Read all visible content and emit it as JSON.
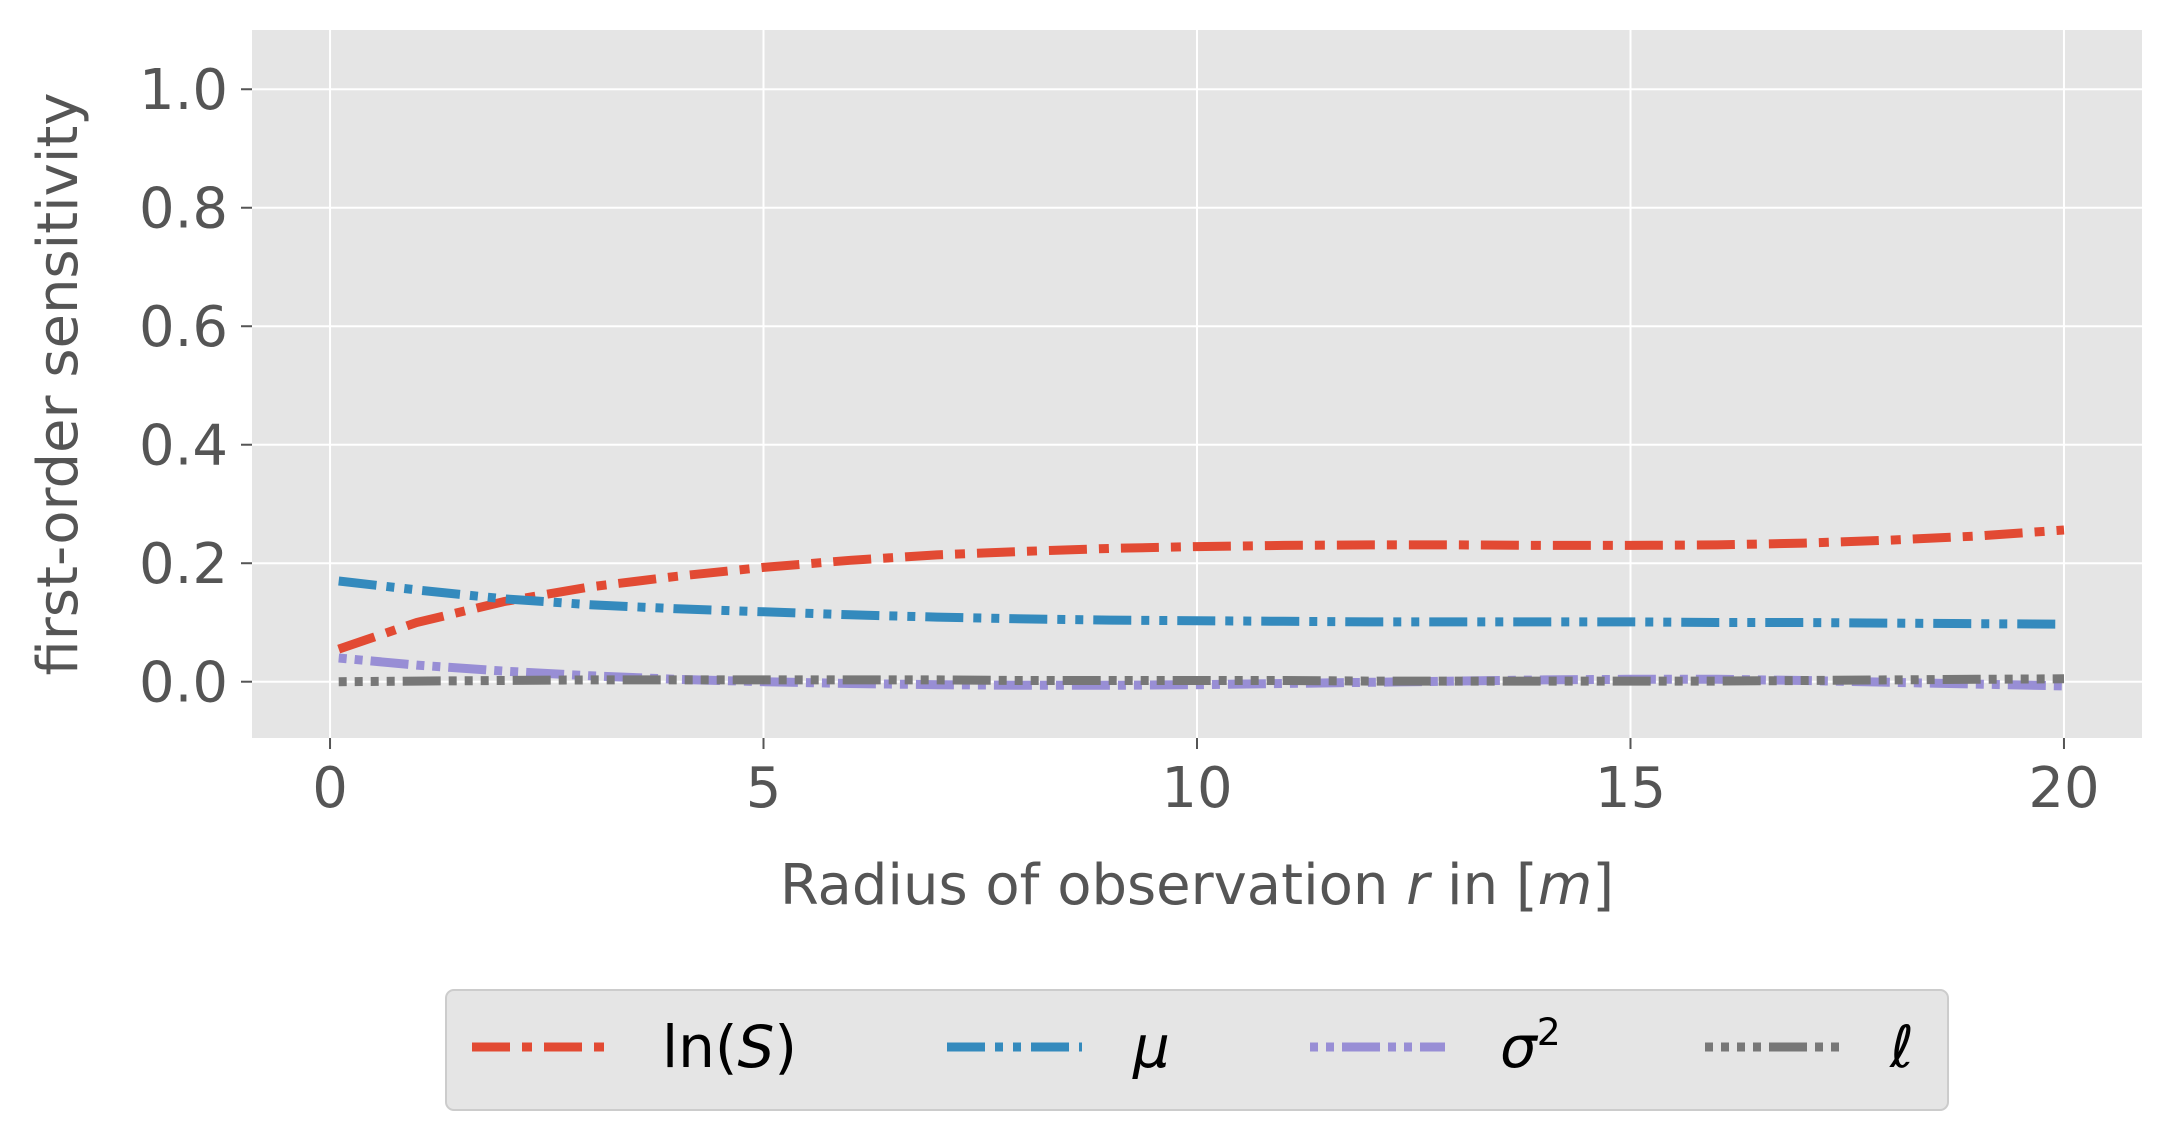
{
  "chart_data": {
    "type": "line",
    "title": "",
    "xlabel": "Radius of observation r in [m]",
    "xlabel_parts": [
      {
        "text": "Radius of observation ",
        "italic": false
      },
      {
        "text": "r",
        "italic": true
      },
      {
        "text": " in [",
        "italic": false
      },
      {
        "text": "m",
        "italic": true
      },
      {
        "text": "]",
        "italic": false
      }
    ],
    "ylabel": "first-order sensitivity",
    "xlim": [
      -0.9,
      20.9
    ],
    "ylim": [
      -0.095,
      1.1
    ],
    "xticks": [
      0,
      5,
      10,
      15,
      20
    ],
    "xtick_labels": [
      "0",
      "5",
      "10",
      "15",
      "20"
    ],
    "yticks": [
      0.0,
      0.2,
      0.4,
      0.6,
      0.8,
      1.0
    ],
    "ytick_labels": [
      "0.0",
      "0.2",
      "0.4",
      "0.6",
      "0.8",
      "1.0"
    ],
    "grid": true,
    "legend_position": "bottom-center",
    "x": [
      0.1,
      1,
      2,
      3,
      4,
      5,
      6,
      7,
      8,
      9,
      10,
      11,
      12,
      13,
      14,
      15,
      16,
      17,
      18,
      19,
      20
    ],
    "series": [
      {
        "name": "ln(S)",
        "legend_label": [
          {
            "text": "ln(",
            "italic": false
          },
          {
            "text": "S",
            "italic": true
          },
          {
            "text": ")",
            "italic": false
          }
        ],
        "color": "#E24A33",
        "style": "dash-dot",
        "values": [
          0.055,
          0.1,
          0.135,
          0.16,
          0.178,
          0.193,
          0.205,
          0.214,
          0.22,
          0.225,
          0.228,
          0.23,
          0.231,
          0.231,
          0.23,
          0.23,
          0.231,
          0.234,
          0.239,
          0.246,
          0.256
        ]
      },
      {
        "name": "μ",
        "legend_label": [
          {
            "text": "μ",
            "italic": true
          }
        ],
        "color": "#348ABD",
        "style": "dash-dot-dot",
        "values": [
          0.17,
          0.155,
          0.14,
          0.13,
          0.123,
          0.118,
          0.113,
          0.109,
          0.106,
          0.104,
          0.103,
          0.102,
          0.101,
          0.101,
          0.101,
          0.101,
          0.1,
          0.1,
          0.099,
          0.098,
          0.097
        ]
      },
      {
        "name": "σ²",
        "legend_label": [
          {
            "text": "σ",
            "italic": true
          },
          {
            "text": "2",
            "italic": false,
            "sup": true
          }
        ],
        "color": "#988ED5",
        "style": "dot-dot-dash",
        "values": [
          0.04,
          0.028,
          0.018,
          0.01,
          0.004,
          0.0,
          -0.003,
          -0.005,
          -0.006,
          -0.006,
          -0.005,
          -0.003,
          -0.001,
          0.001,
          0.003,
          0.004,
          0.004,
          0.002,
          -0.001,
          -0.004,
          -0.007
        ]
      },
      {
        "name": "ℓ",
        "legend_label": [
          {
            "text": "ℓ",
            "italic": true
          }
        ],
        "color": "#777777",
        "style": "dotted-dash",
        "values": [
          0.0,
          0.001,
          0.002,
          0.003,
          0.003,
          0.003,
          0.003,
          0.003,
          0.002,
          0.002,
          0.002,
          0.002,
          0.001,
          0.001,
          0.001,
          0.001,
          0.001,
          0.002,
          0.003,
          0.004,
          0.005
        ]
      }
    ]
  }
}
